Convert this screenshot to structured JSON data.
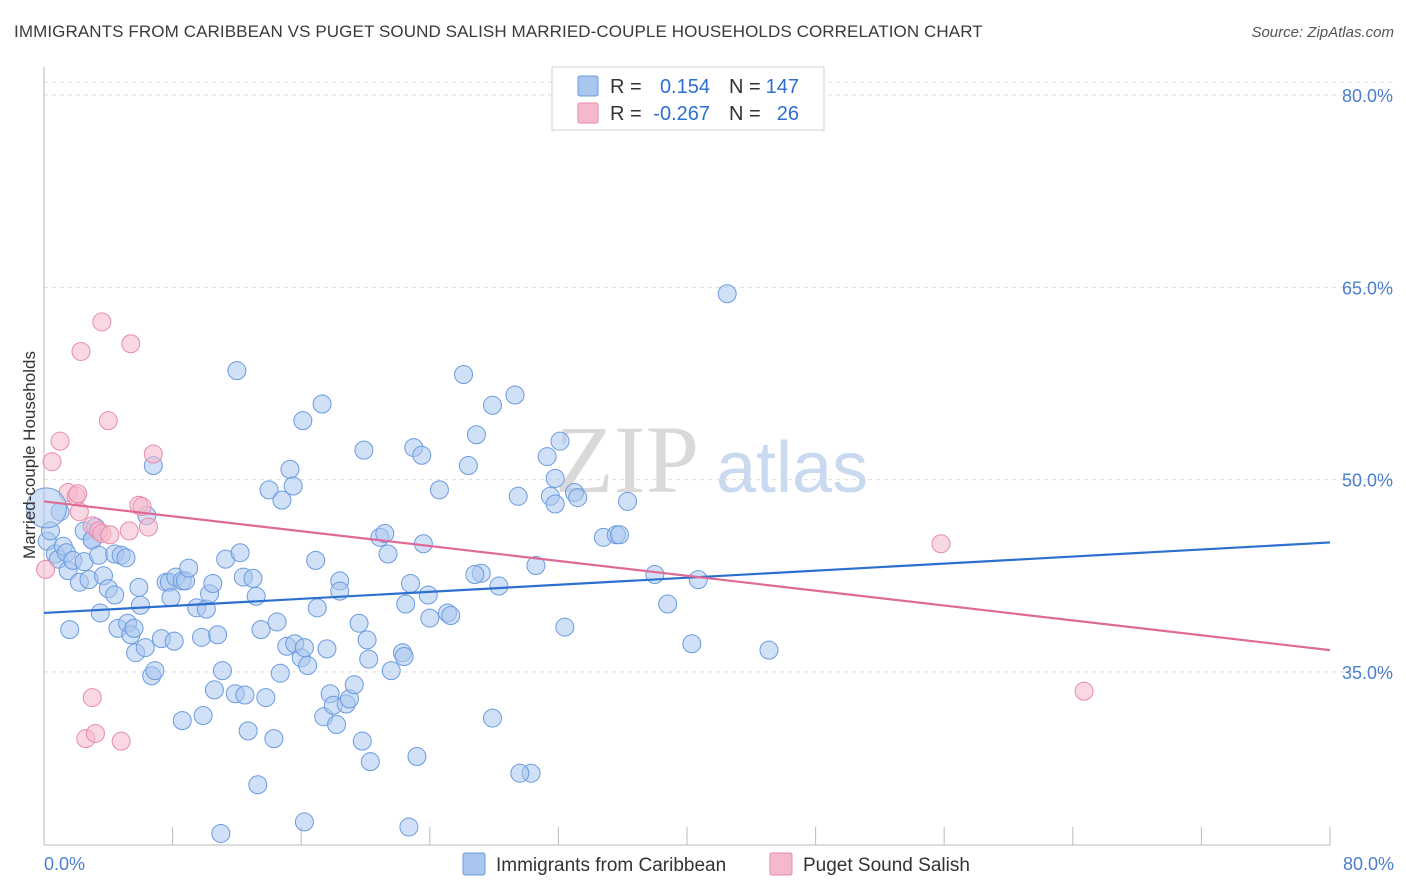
{
  "title": "IMMIGRANTS FROM CARIBBEAN VS PUGET SOUND SALISH MARRIED-COUPLE HOUSEHOLDS CORRELATION CHART",
  "source": "Source: ZipAtlas.com",
  "watermark": {
    "zip": "ZIP",
    "atlas": "atlas"
  },
  "colors": {
    "blue_fill": "#a9c6ef",
    "blue_stroke": "#6a9be0",
    "blue_line": "#2d6fcf",
    "pink_fill": "#f6b8cc",
    "pink_stroke": "#e88aa8",
    "pink_line": "#e06a96",
    "label_blue": "#4a7fcf",
    "grid": "#dddddd"
  },
  "legend": {
    "rows": [
      {
        "r_label": "R =",
        "r_value": "0.154",
        "n_label": "N =",
        "n_value": "147"
      },
      {
        "r_label": "R =",
        "r_value": "-0.267",
        "n_label": "N =",
        "n_value": "26"
      }
    ]
  },
  "chart_data": {
    "type": "scatter",
    "title": "IMMIGRANTS FROM CARIBBEAN VS PUGET SOUND SALISH MARRIED-COUPLE HOUSEHOLDS CORRELATION CHART",
    "xlabel": "",
    "ylabel": "Married-couple Households",
    "xlim": [
      0,
      80
    ],
    "ylim": [
      21.5,
      82.5
    ],
    "x_tick_labels": [
      "0.0%",
      "80.0%"
    ],
    "y_ticks": [
      35,
      50,
      65,
      80
    ],
    "y_tick_labels": [
      "35.0%",
      "50.0%",
      "65.0%",
      "80.0%"
    ],
    "grid": true,
    "legend_position": "bottom",
    "series": [
      {
        "name": "Immigrants from Caribbean",
        "color": "#a9c6ef",
        "trend": {
          "x": [
            0,
            80
          ],
          "y": [
            39.6,
            45.1
          ]
        },
        "points": [
          [
            0.2,
            45.2
          ],
          [
            0.4,
            46.0
          ],
          [
            0.7,
            44.2
          ],
          [
            0.9,
            43.8
          ],
          [
            1.0,
            47.5
          ],
          [
            1.2,
            44.8
          ],
          [
            1.4,
            44.3
          ],
          [
            1.5,
            42.9
          ],
          [
            1.6,
            38.3
          ],
          [
            1.8,
            43.7
          ],
          [
            2.2,
            42.0
          ],
          [
            2.5,
            43.6
          ],
          [
            2.5,
            46.0
          ],
          [
            2.8,
            42.2
          ],
          [
            3.0,
            45.3
          ],
          [
            3.0,
            45.3
          ],
          [
            3.2,
            46.3
          ],
          [
            3.4,
            44.1
          ],
          [
            3.5,
            39.6
          ],
          [
            3.7,
            42.5
          ],
          [
            4.0,
            41.5
          ],
          [
            4.4,
            41.0
          ],
          [
            4.4,
            44.2
          ],
          [
            4.6,
            38.4
          ],
          [
            4.8,
            44.1
          ],
          [
            5.1,
            43.9
          ],
          [
            5.2,
            38.8
          ],
          [
            5.4,
            37.9
          ],
          [
            5.6,
            38.4
          ],
          [
            5.7,
            36.5
          ],
          [
            5.9,
            41.6
          ],
          [
            6.0,
            40.2
          ],
          [
            6.3,
            36.9
          ],
          [
            6.4,
            47.2
          ],
          [
            6.7,
            34.7
          ],
          [
            6.8,
            51.1
          ],
          [
            6.9,
            35.1
          ],
          [
            7.3,
            37.6
          ],
          [
            7.6,
            42.0
          ],
          [
            7.8,
            42.0
          ],
          [
            7.9,
            40.8
          ],
          [
            8.1,
            37.4
          ],
          [
            8.2,
            42.4
          ],
          [
            8.6,
            42.1
          ],
          [
            8.6,
            31.2
          ],
          [
            8.8,
            42.1
          ],
          [
            9.0,
            43.1
          ],
          [
            9.5,
            40.0
          ],
          [
            9.8,
            37.7
          ],
          [
            9.9,
            31.6
          ],
          [
            10.1,
            39.9
          ],
          [
            10.3,
            41.1
          ],
          [
            10.5,
            41.9
          ],
          [
            10.6,
            33.6
          ],
          [
            10.8,
            37.9
          ],
          [
            11.1,
            35.1
          ],
          [
            11.3,
            43.8
          ],
          [
            11.9,
            33.3
          ],
          [
            12.0,
            58.5
          ],
          [
            12.2,
            44.3
          ],
          [
            12.4,
            42.4
          ],
          [
            12.5,
            33.2
          ],
          [
            12.7,
            30.4
          ],
          [
            13.0,
            42.3
          ],
          [
            13.2,
            40.9
          ],
          [
            13.5,
            38.3
          ],
          [
            13.8,
            33.0
          ],
          [
            14.0,
            49.2
          ],
          [
            14.3,
            29.8
          ],
          [
            14.5,
            38.9
          ],
          [
            14.7,
            34.9
          ],
          [
            14.8,
            48.4
          ],
          [
            15.1,
            37.0
          ],
          [
            15.3,
            50.8
          ],
          [
            15.5,
            49.5
          ],
          [
            15.6,
            37.2
          ],
          [
            16.0,
            36.1
          ],
          [
            16.1,
            54.6
          ],
          [
            16.2,
            36.9
          ],
          [
            16.4,
            35.5
          ],
          [
            16.9,
            43.7
          ],
          [
            17.0,
            40.0
          ],
          [
            17.3,
            55.9
          ],
          [
            17.4,
            31.5
          ],
          [
            17.6,
            36.8
          ],
          [
            17.8,
            33.3
          ],
          [
            18.0,
            32.4
          ],
          [
            18.2,
            30.9
          ],
          [
            18.4,
            42.1
          ],
          [
            18.4,
            41.3
          ],
          [
            18.8,
            32.5
          ],
          [
            19.0,
            32.9
          ],
          [
            19.3,
            34.0
          ],
          [
            19.6,
            38.8
          ],
          [
            19.8,
            29.6
          ],
          [
            19.9,
            52.3
          ],
          [
            20.1,
            37.5
          ],
          [
            20.2,
            36.0
          ],
          [
            20.9,
            45.5
          ],
          [
            21.2,
            45.8
          ],
          [
            21.4,
            44.2
          ],
          [
            21.6,
            35.1
          ],
          [
            22.3,
            36.5
          ],
          [
            22.4,
            36.2
          ],
          [
            22.5,
            40.3
          ],
          [
            22.8,
            41.9
          ],
          [
            23.0,
            52.5
          ],
          [
            23.5,
            51.9
          ],
          [
            23.6,
            45.0
          ],
          [
            23.9,
            41.0
          ],
          [
            24.6,
            49.2
          ],
          [
            25.1,
            39.6
          ],
          [
            25.3,
            39.4
          ],
          [
            26.1,
            58.2
          ],
          [
            26.4,
            51.1
          ],
          [
            26.9,
            53.5
          ],
          [
            27.2,
            42.7
          ],
          [
            27.9,
            55.8
          ],
          [
            27.9,
            31.4
          ],
          [
            28.3,
            41.7
          ],
          [
            29.3,
            56.6
          ],
          [
            29.5,
            48.7
          ],
          [
            30.3,
            27.1
          ],
          [
            30.6,
            43.3
          ],
          [
            31.3,
            51.8
          ],
          [
            31.5,
            48.7
          ],
          [
            31.8,
            50.1
          ],
          [
            31.8,
            48.1
          ],
          [
            32.1,
            53.0
          ],
          [
            32.4,
            38.5
          ],
          [
            33.0,
            49.0
          ],
          [
            33.2,
            48.6
          ],
          [
            34.8,
            45.5
          ],
          [
            35.6,
            45.7
          ],
          [
            35.8,
            45.7
          ],
          [
            36.3,
            48.3
          ],
          [
            38.0,
            42.6
          ],
          [
            40.3,
            37.2
          ],
          [
            38.8,
            40.3
          ],
          [
            40.7,
            42.2
          ],
          [
            42.5,
            64.5
          ],
          [
            45.1,
            36.7
          ],
          [
            16.2,
            23.3
          ],
          [
            11.0,
            22.4
          ],
          [
            13.3,
            26.2
          ],
          [
            20.3,
            28.0
          ],
          [
            22.7,
            22.9
          ],
          [
            24.0,
            39.2
          ],
          [
            26.8,
            42.6
          ],
          [
            29.6,
            27.1
          ],
          [
            23.2,
            28.4
          ]
        ]
      },
      {
        "name": "Puget Sound Salish",
        "color": "#f6b8cc",
        "trend": {
          "x": [
            0,
            80
          ],
          "y": [
            48.3,
            36.7
          ]
        },
        "points": [
          [
            0.1,
            43.0
          ],
          [
            0.5,
            51.4
          ],
          [
            1.0,
            53.0
          ],
          [
            1.5,
            49.0
          ],
          [
            2.0,
            48.7
          ],
          [
            2.2,
            47.5
          ],
          [
            2.6,
            29.8
          ],
          [
            3.0,
            46.4
          ],
          [
            3.4,
            46.0
          ],
          [
            3.6,
            45.8
          ],
          [
            4.1,
            45.7
          ],
          [
            5.3,
            46.0
          ],
          [
            5.9,
            48.0
          ],
          [
            6.1,
            47.9
          ],
          [
            6.8,
            52.0
          ],
          [
            2.3,
            60.0
          ],
          [
            3.6,
            62.3
          ],
          [
            5.4,
            60.6
          ],
          [
            4.0,
            54.6
          ],
          [
            3.2,
            30.2
          ],
          [
            4.8,
            29.6
          ],
          [
            3.0,
            33.0
          ],
          [
            2.1,
            48.9
          ],
          [
            55.8,
            45.0
          ],
          [
            64.7,
            33.5
          ],
          [
            6.5,
            46.3
          ]
        ]
      }
    ]
  },
  "bottom_legend": [
    {
      "label": "Immigrants from Caribbean"
    },
    {
      "label": "Puget Sound Salish"
    }
  ]
}
